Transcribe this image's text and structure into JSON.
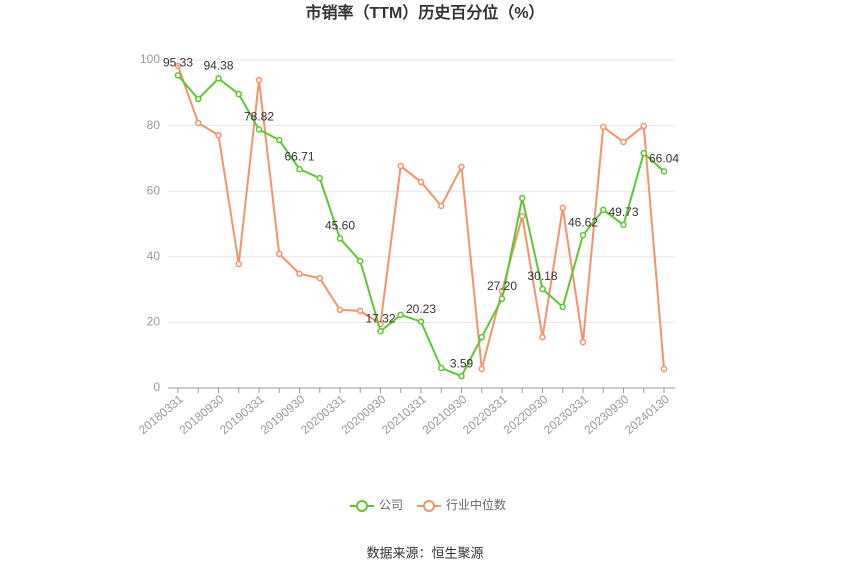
{
  "chart_data": {
    "type": "line",
    "title": "市销率（TTM）历史百分位（%）",
    "source": "数据来源：恒生聚源",
    "categories": [
      "20180331",
      null,
      "20180930",
      null,
      "20190331",
      null,
      "20190930",
      null,
      "20200331",
      null,
      "20200930",
      null,
      "20210331",
      null,
      "20210930",
      null,
      "20220331",
      null,
      "20220930",
      null,
      "20230331",
      null,
      "20230930",
      null,
      "20240130"
    ],
    "series": [
      {
        "name": "公司",
        "color": "#5cc72e",
        "values": [
          95.33,
          88.1,
          94.38,
          89.6,
          78.82,
          75.6,
          66.71,
          64.0,
          45.6,
          38.7,
          17.32,
          22.3,
          20.23,
          6.1,
          3.59,
          15.5,
          27.2,
          57.9,
          30.18,
          24.7,
          46.62,
          54.3,
          49.73,
          71.6,
          66.04
        ],
        "value_labels": [
          "95.33",
          null,
          "94.38",
          null,
          "78.82",
          null,
          "66.71",
          null,
          "45.60",
          null,
          "17.32",
          null,
          "20.23",
          null,
          "3.59",
          null,
          "27.20",
          null,
          "30.18",
          null,
          "46.62",
          null,
          "49.73",
          null,
          "66.04"
        ]
      },
      {
        "name": "行业中位数",
        "color": "#f4926a",
        "values": [
          98.2,
          80.8,
          77.1,
          37.8,
          93.9,
          40.9,
          34.8,
          33.5,
          23.8,
          23.5,
          19.5,
          67.7,
          62.8,
          55.5,
          67.4,
          5.8,
          29.6,
          52.4,
          15.5,
          54.9,
          14.0,
          79.6,
          75.0,
          79.9,
          5.8
        ]
      }
    ],
    "ylim": [
      0,
      100
    ],
    "yticks": [
      0,
      20,
      40,
      60,
      80,
      100
    ],
    "grid": true
  }
}
